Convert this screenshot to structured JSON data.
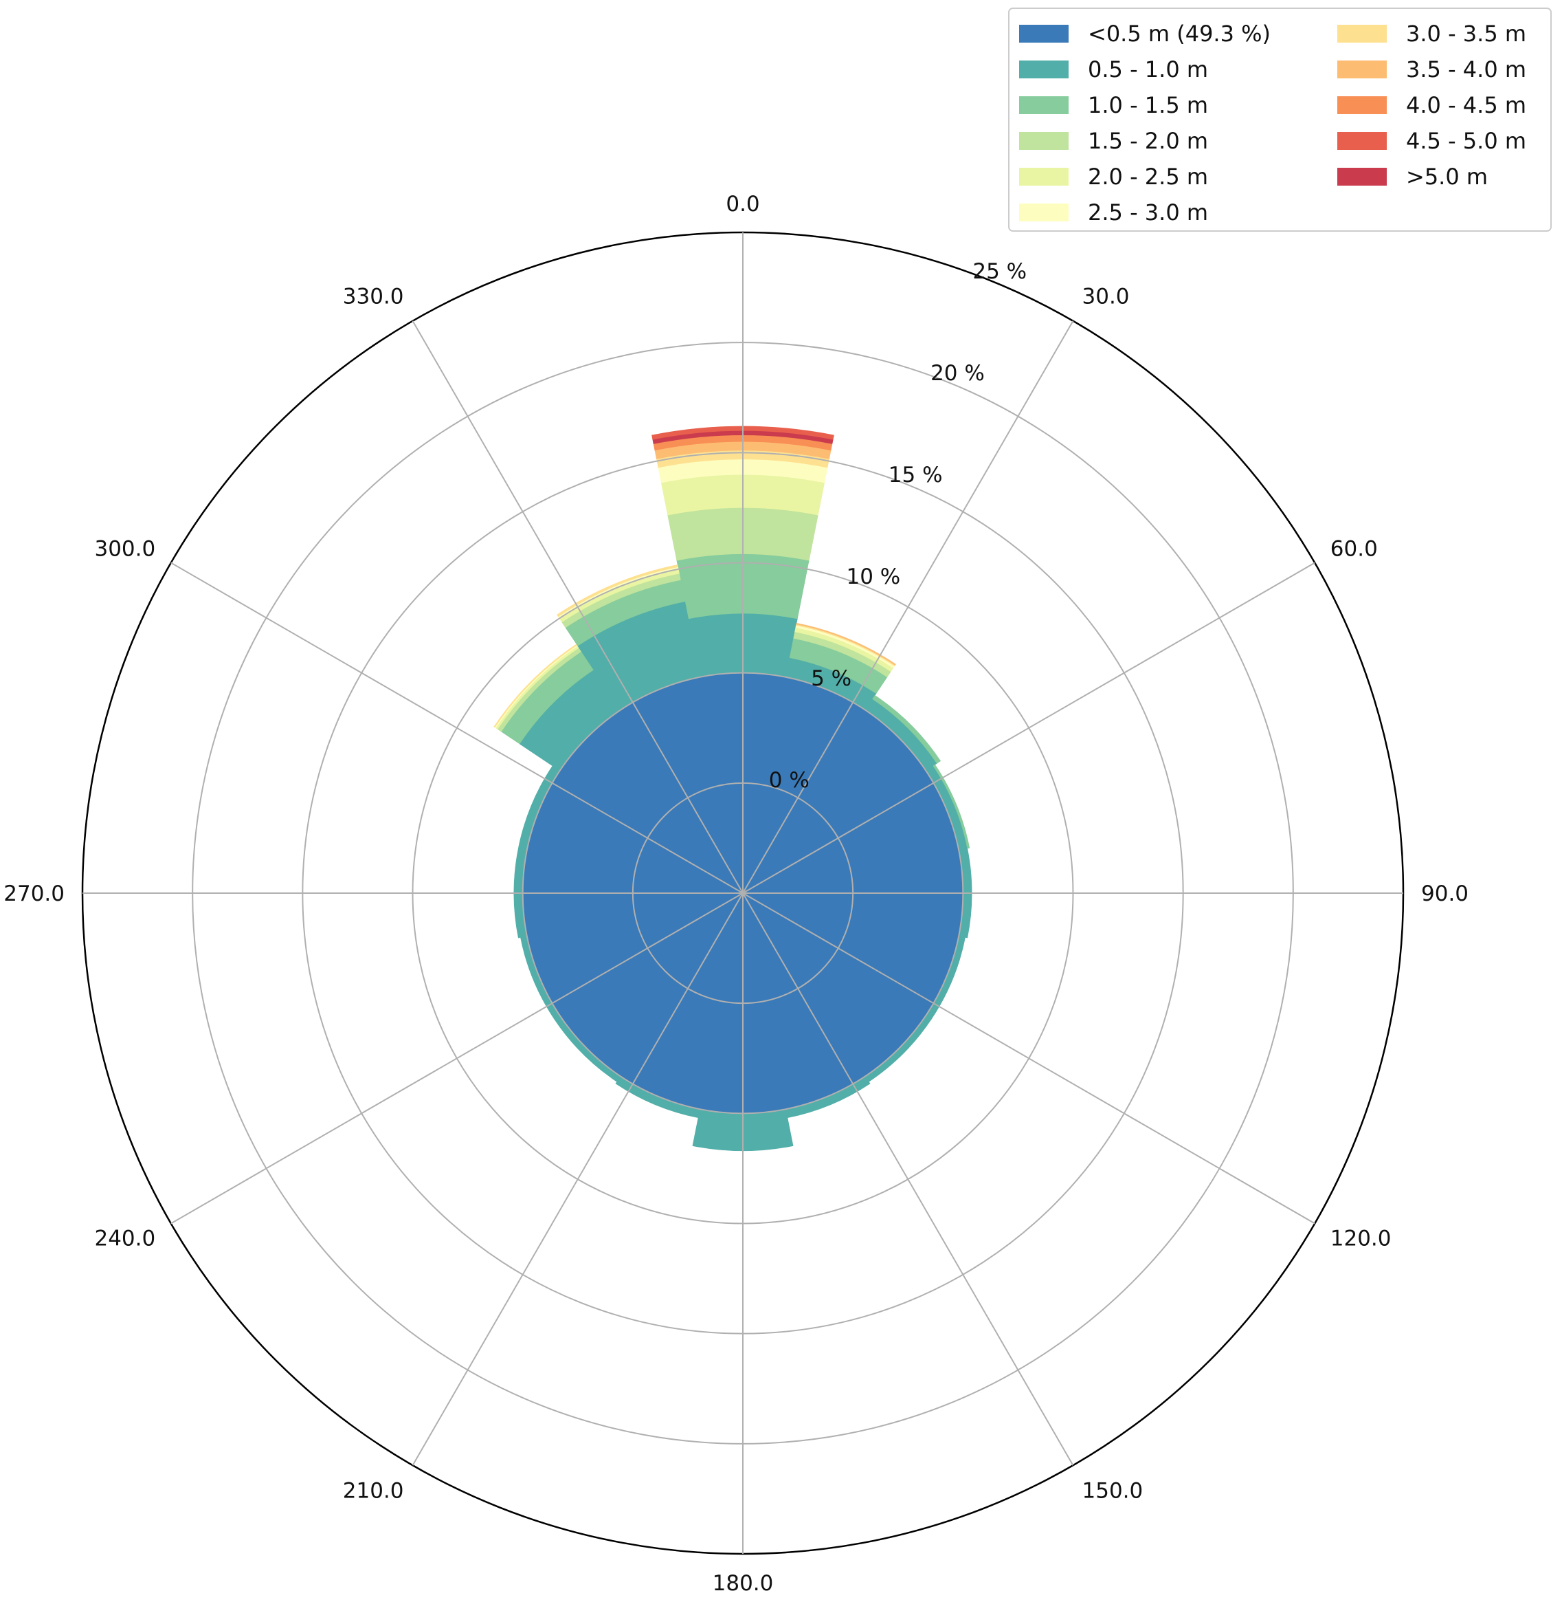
{
  "chart_data": {
    "type": "windrose",
    "title": "",
    "direction_labels": [
      "0.0",
      "30.0",
      "60.0",
      "90.0",
      "120.0",
      "150.0",
      "180.0",
      "210.0",
      "240.0",
      "270.0",
      "300.0",
      "330.0"
    ],
    "radial_labels": [
      "0 %",
      "5 %",
      "10 %",
      "15 %",
      "20 %",
      "25 %"
    ],
    "radial_ticks_percent": [
      0,
      5,
      10,
      15,
      20,
      25
    ],
    "rlim_percent": [
      -5,
      25
    ],
    "sector_width_deg": 22.5,
    "bins": [
      {
        "label": "<0.5 m (49.3 %)",
        "color": "#3a7ab8"
      },
      {
        "label": "0.5 - 1.0 m",
        "color": "#52aea8"
      },
      {
        "label": "1.0 - 1.5 m",
        "color": "#86cc9c"
      },
      {
        "label": "1.5 - 2.0 m",
        "color": "#c0e39d"
      },
      {
        "label": "2.0 - 2.5 m",
        "color": "#e9f5a2"
      },
      {
        "label": "2.5 - 3.0 m",
        "color": "#fdfdc0"
      },
      {
        "label": "3.0 - 3.5 m",
        "color": "#fde191"
      },
      {
        "label": "3.5 - 4.0 m",
        "color": "#fcbd73"
      },
      {
        "label": "4.0 - 4.5 m",
        "color": "#f88f55"
      },
      {
        "label": ">5.0 m",
        "color": "#cb3b4e"
      },
      {
        "label": "4.5 - 5.0 m",
        "color": "#e8604d"
      }
    ],
    "legend_order": [
      0,
      1,
      2,
      3,
      4,
      5,
      6,
      7,
      8,
      10,
      9
    ],
    "legend_position": "top-right",
    "sectors": [
      {
        "direction": 0.0,
        "cumulative_percent": [
          5.0,
          7.7,
          10.4,
          12.5,
          14.0,
          14.7,
          15.1,
          15.5,
          15.8,
          16.0,
          16.2
        ]
      },
      {
        "direction": 22.5,
        "cumulative_percent": [
          5.0,
          5.9,
          6.8,
          7.1,
          7.3,
          7.4,
          7.45,
          7.5,
          7.5,
          7.5,
          7.5
        ]
      },
      {
        "direction": 45.0,
        "cumulative_percent": [
          5.0,
          5.6,
          5.8,
          5.8,
          5.8,
          5.8,
          5.8,
          5.8,
          5.8,
          5.8,
          5.8
        ]
      },
      {
        "direction": 67.5,
        "cumulative_percent": [
          5.0,
          5.4,
          5.5,
          5.5,
          5.5,
          5.5,
          5.5,
          5.5,
          5.5,
          5.5,
          5.5
        ]
      },
      {
        "direction": 90.0,
        "cumulative_percent": [
          5.0,
          5.4,
          5.4,
          5.4,
          5.4,
          5.4,
          5.4,
          5.4,
          5.4,
          5.4,
          5.4
        ]
      },
      {
        "direction": 112.5,
        "cumulative_percent": [
          5.0,
          5.3,
          5.3,
          5.3,
          5.3,
          5.3,
          5.3,
          5.3,
          5.3,
          5.3,
          5.3
        ]
      },
      {
        "direction": 135.0,
        "cumulative_percent": [
          5.0,
          5.3,
          5.3,
          5.3,
          5.3,
          5.3,
          5.3,
          5.3,
          5.3,
          5.3,
          5.3
        ]
      },
      {
        "direction": 157.5,
        "cumulative_percent": [
          5.0,
          5.4,
          5.4,
          5.4,
          5.4,
          5.4,
          5.4,
          5.4,
          5.4,
          5.4,
          5.4
        ]
      },
      {
        "direction": 180.0,
        "cumulative_percent": [
          5.0,
          6.7,
          6.7,
          6.7,
          6.7,
          6.7,
          6.7,
          6.7,
          6.7,
          6.7,
          6.7
        ]
      },
      {
        "direction": 202.5,
        "cumulative_percent": [
          5.0,
          5.4,
          5.4,
          5.4,
          5.4,
          5.4,
          5.4,
          5.4,
          5.4,
          5.4,
          5.4
        ]
      },
      {
        "direction": 225.0,
        "cumulative_percent": [
          5.0,
          5.3,
          5.3,
          5.3,
          5.3,
          5.3,
          5.3,
          5.3,
          5.3,
          5.3,
          5.3
        ]
      },
      {
        "direction": 247.5,
        "cumulative_percent": [
          5.0,
          5.3,
          5.3,
          5.3,
          5.3,
          5.3,
          5.3,
          5.3,
          5.3,
          5.3,
          5.3
        ]
      },
      {
        "direction": 270.0,
        "cumulative_percent": [
          5.0,
          5.4,
          5.4,
          5.4,
          5.4,
          5.4,
          5.4,
          5.4,
          5.4,
          5.4,
          5.4
        ]
      },
      {
        "direction": 292.5,
        "cumulative_percent": [
          5.0,
          5.4,
          5.4,
          5.4,
          5.4,
          5.4,
          5.4,
          5.4,
          5.4,
          5.4,
          5.4
        ]
      },
      {
        "direction": 315.0,
        "cumulative_percent": [
          5.0,
          7.2,
          8.2,
          8.4,
          8.5,
          8.55,
          8.6,
          8.6,
          8.6,
          8.6,
          8.6
        ]
      },
      {
        "direction": 337.5,
        "cumulative_percent": [
          5.0,
          8.5,
          9.5,
          9.8,
          10.0,
          10.1,
          10.2,
          10.2,
          10.2,
          10.2,
          10.2
        ]
      }
    ]
  }
}
